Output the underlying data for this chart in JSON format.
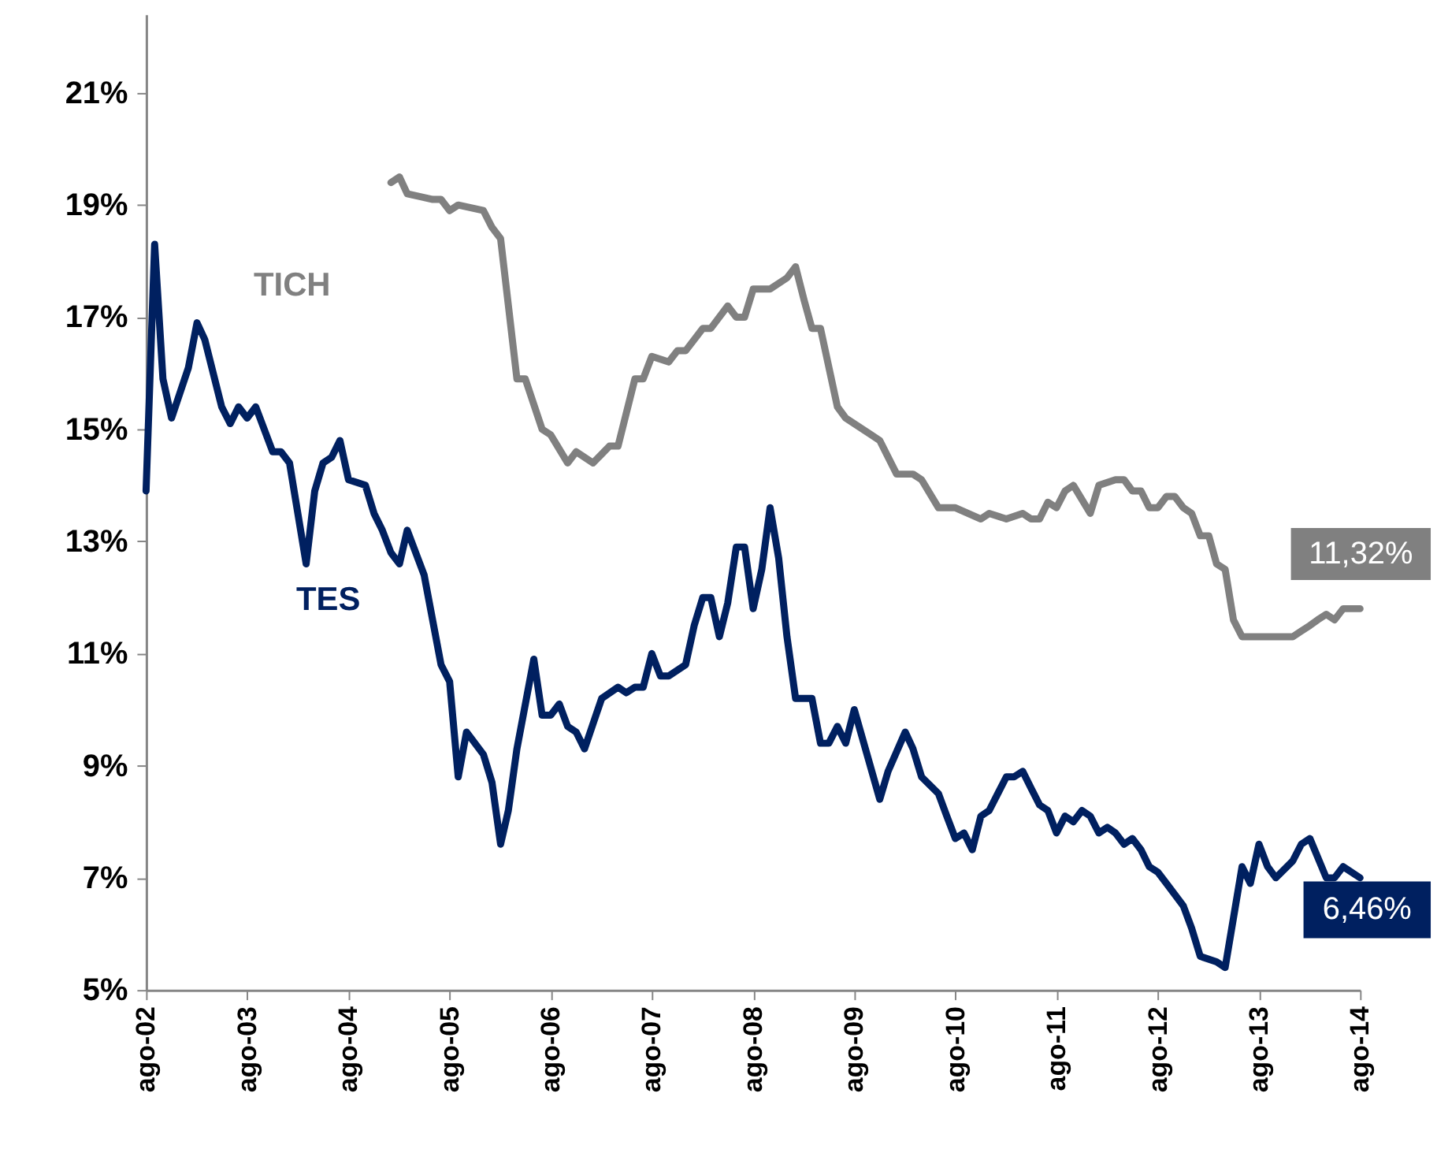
{
  "chart_data": {
    "type": "line",
    "xlim": [
      "2002-08",
      "2014-08"
    ],
    "xticks": [
      {
        "value": "2002-08",
        "label": "ago-02"
      },
      {
        "value": "2003-08",
        "label": "ago-03"
      },
      {
        "value": "2004-08",
        "label": "ago-04"
      },
      {
        "value": "2005-08",
        "label": "ago-05"
      },
      {
        "value": "2006-08",
        "label": "ago-06"
      },
      {
        "value": "2007-08",
        "label": "ago-07"
      },
      {
        "value": "2008-08",
        "label": "ago-08"
      },
      {
        "value": "2009-08",
        "label": "ago-09"
      },
      {
        "value": "2010-08",
        "label": "ago-10"
      },
      {
        "value": "2011-08",
        "label": "ago-11"
      },
      {
        "value": "2012-08",
        "label": "ago-12"
      },
      {
        "value": "2013-08",
        "label": "ago-13"
      },
      {
        "value": "2014-08",
        "label": "ago-14"
      }
    ],
    "ylim": [
      5,
      22.4
    ],
    "yticks": [
      {
        "value": 5,
        "label": "5%"
      },
      {
        "value": 7,
        "label": "7%"
      },
      {
        "value": 9,
        "label": "9%"
      },
      {
        "value": 11,
        "label": "11%"
      },
      {
        "value": 13,
        "label": "13%"
      },
      {
        "value": 15,
        "label": "15%"
      },
      {
        "value": 17,
        "label": "17%"
      },
      {
        "value": 19,
        "label": "19%"
      },
      {
        "value": 21,
        "label": "21%"
      }
    ],
    "grid": false,
    "marker": "none",
    "line_style": "solid",
    "annotations": [
      "11,32%",
      "6,46%"
    ],
    "series": [
      {
        "name": "TICH",
        "color": "#808080",
        "x": [
          "2005-01",
          "2005-02",
          "2005-03",
          "2005-06",
          "2005-07",
          "2005-08",
          "2005-09",
          "2005-12",
          "2006-01",
          "2006-02",
          "2006-04",
          "2006-05",
          "2006-07",
          "2006-08",
          "2006-10",
          "2006-11",
          "2007-01",
          "2007-03",
          "2007-04",
          "2007-06",
          "2007-07",
          "2007-08",
          "2007-10",
          "2007-11",
          "2007-12",
          "2008-02",
          "2008-03",
          "2008-05",
          "2008-06",
          "2008-07",
          "2008-08",
          "2008-10",
          "2008-12",
          "2009-01",
          "2009-02",
          "2009-03",
          "2009-04",
          "2009-06",
          "2009-07",
          "2009-10",
          "2009-11",
          "2010-01",
          "2010-03",
          "2010-04",
          "2010-06",
          "2010-08",
          "2010-11",
          "2010-12",
          "2011-02",
          "2011-04",
          "2011-05",
          "2011-06",
          "2011-07",
          "2011-08",
          "2011-09",
          "2011-10",
          "2011-12",
          "2012-01",
          "2012-03",
          "2012-04",
          "2012-05",
          "2012-06",
          "2012-07",
          "2012-08",
          "2012-09",
          "2012-10",
          "2012-11",
          "2012-12",
          "2013-01",
          "2013-02",
          "2013-03",
          "2013-04",
          "2013-05",
          "2013-06",
          "2013-08",
          "2013-10",
          "2013-12",
          "2014-01",
          "2014-02",
          "2014-03",
          "2014-04",
          "2014-05",
          "2014-06",
          "2014-08"
        ],
        "values": [
          19.4,
          19.5,
          19.2,
          19.1,
          19.1,
          18.9,
          19.0,
          18.9,
          18.6,
          18.4,
          15.9,
          15.9,
          15.0,
          14.9,
          14.4,
          14.6,
          14.4,
          14.7,
          14.7,
          15.9,
          15.9,
          16.3,
          16.2,
          16.4,
          16.4,
          16.8,
          16.8,
          17.2,
          17.0,
          17.0,
          17.5,
          17.5,
          17.7,
          17.9,
          17.3,
          16.8,
          16.8,
          15.4,
          15.2,
          14.9,
          14.8,
          14.2,
          14.2,
          14.1,
          13.6,
          13.6,
          13.4,
          13.5,
          13.4,
          13.5,
          13.4,
          13.4,
          13.7,
          13.6,
          13.9,
          14.0,
          13.5,
          14.0,
          14.1,
          14.1,
          13.9,
          13.9,
          13.6,
          13.6,
          13.8,
          13.8,
          13.6,
          13.5,
          13.1,
          13.1,
          12.6,
          12.5,
          11.6,
          11.3,
          11.3,
          11.3,
          11.3,
          11.4,
          11.5,
          11.6,
          11.7,
          11.6,
          11.8,
          11.8
        ]
      },
      {
        "name": "TES",
        "color": "#002060",
        "x": [
          "2002-08",
          "2002-09",
          "2002-10",
          "2002-11",
          "2003-01",
          "2003-02",
          "2003-03",
          "2003-05",
          "2003-06",
          "2003-07",
          "2003-08",
          "2003-09",
          "2003-11",
          "2003-12",
          "2004-01",
          "2004-03",
          "2004-04",
          "2004-05",
          "2004-06",
          "2004-07",
          "2004-08",
          "2004-10",
          "2004-11",
          "2004-12",
          "2005-01",
          "2005-02",
          "2005-03",
          "2005-05",
          "2005-07",
          "2005-08",
          "2005-09",
          "2005-10",
          "2005-12",
          "2006-01",
          "2006-02",
          "2006-03",
          "2006-04",
          "2006-06",
          "2006-07",
          "2006-08",
          "2006-09",
          "2006-10",
          "2006-11",
          "2006-12",
          "2007-02",
          "2007-04",
          "2007-05",
          "2007-06",
          "2007-07",
          "2007-08",
          "2007-09",
          "2007-10",
          "2007-12",
          "2008-01",
          "2008-02",
          "2008-03",
          "2008-04",
          "2008-05",
          "2008-06",
          "2008-07",
          "2008-08",
          "2008-09",
          "2008-10",
          "2008-11",
          "2008-12",
          "2009-01",
          "2009-02",
          "2009-03",
          "2009-04",
          "2009-05",
          "2009-06",
          "2009-07",
          "2009-08",
          "2009-11",
          "2009-12",
          "2010-02",
          "2010-03",
          "2010-04",
          "2010-06",
          "2010-07",
          "2010-08",
          "2010-09",
          "2010-10",
          "2010-11",
          "2010-12",
          "2011-01",
          "2011-02",
          "2011-03",
          "2011-04",
          "2011-05",
          "2011-06",
          "2011-07",
          "2011-08",
          "2011-09",
          "2011-10",
          "2011-11",
          "2011-12",
          "2012-01",
          "2012-02",
          "2012-03",
          "2012-04",
          "2012-05",
          "2012-06",
          "2012-07",
          "2012-08",
          "2012-09",
          "2012-11",
          "2012-12",
          "2013-01",
          "2013-03",
          "2013-04",
          "2013-06",
          "2013-07",
          "2013-08",
          "2013-09",
          "2013-10",
          "2013-12",
          "2014-01",
          "2014-02",
          "2014-04",
          "2014-05",
          "2014-06",
          "2014-08"
        ],
        "values": [
          13.9,
          18.3,
          15.9,
          15.2,
          16.1,
          16.9,
          16.6,
          15.4,
          15.1,
          15.4,
          15.2,
          15.4,
          14.6,
          14.6,
          14.4,
          12.6,
          13.9,
          14.4,
          14.5,
          14.8,
          14.1,
          14.0,
          13.5,
          13.2,
          12.8,
          12.6,
          13.2,
          12.4,
          10.8,
          10.5,
          8.8,
          9.6,
          9.2,
          8.7,
          7.6,
          8.2,
          9.3,
          10.9,
          9.9,
          9.9,
          10.1,
          9.7,
          9.6,
          9.3,
          10.2,
          10.4,
          10.3,
          10.4,
          10.4,
          11.0,
          10.6,
          10.6,
          10.8,
          11.5,
          12.0,
          12.0,
          11.3,
          11.9,
          12.9,
          12.9,
          11.8,
          12.5,
          13.6,
          12.7,
          11.3,
          10.2,
          10.2,
          10.2,
          9.4,
          9.4,
          9.7,
          9.4,
          10.0,
          8.4,
          8.9,
          9.6,
          9.3,
          8.8,
          8.5,
          8.1,
          7.7,
          7.8,
          7.5,
          8.1,
          8.2,
          8.5,
          8.8,
          8.8,
          8.9,
          8.6,
          8.3,
          8.2,
          7.8,
          8.1,
          8.0,
          8.2,
          8.1,
          7.8,
          7.9,
          7.8,
          7.6,
          7.7,
          7.5,
          7.2,
          7.1,
          6.9,
          6.5,
          6.1,
          5.6,
          5.5,
          5.4,
          7.2,
          6.9,
          7.6,
          7.2,
          7.0,
          7.3,
          7.6,
          7.7,
          7.0,
          7.0,
          7.2,
          7.0
        ]
      }
    ]
  }
}
